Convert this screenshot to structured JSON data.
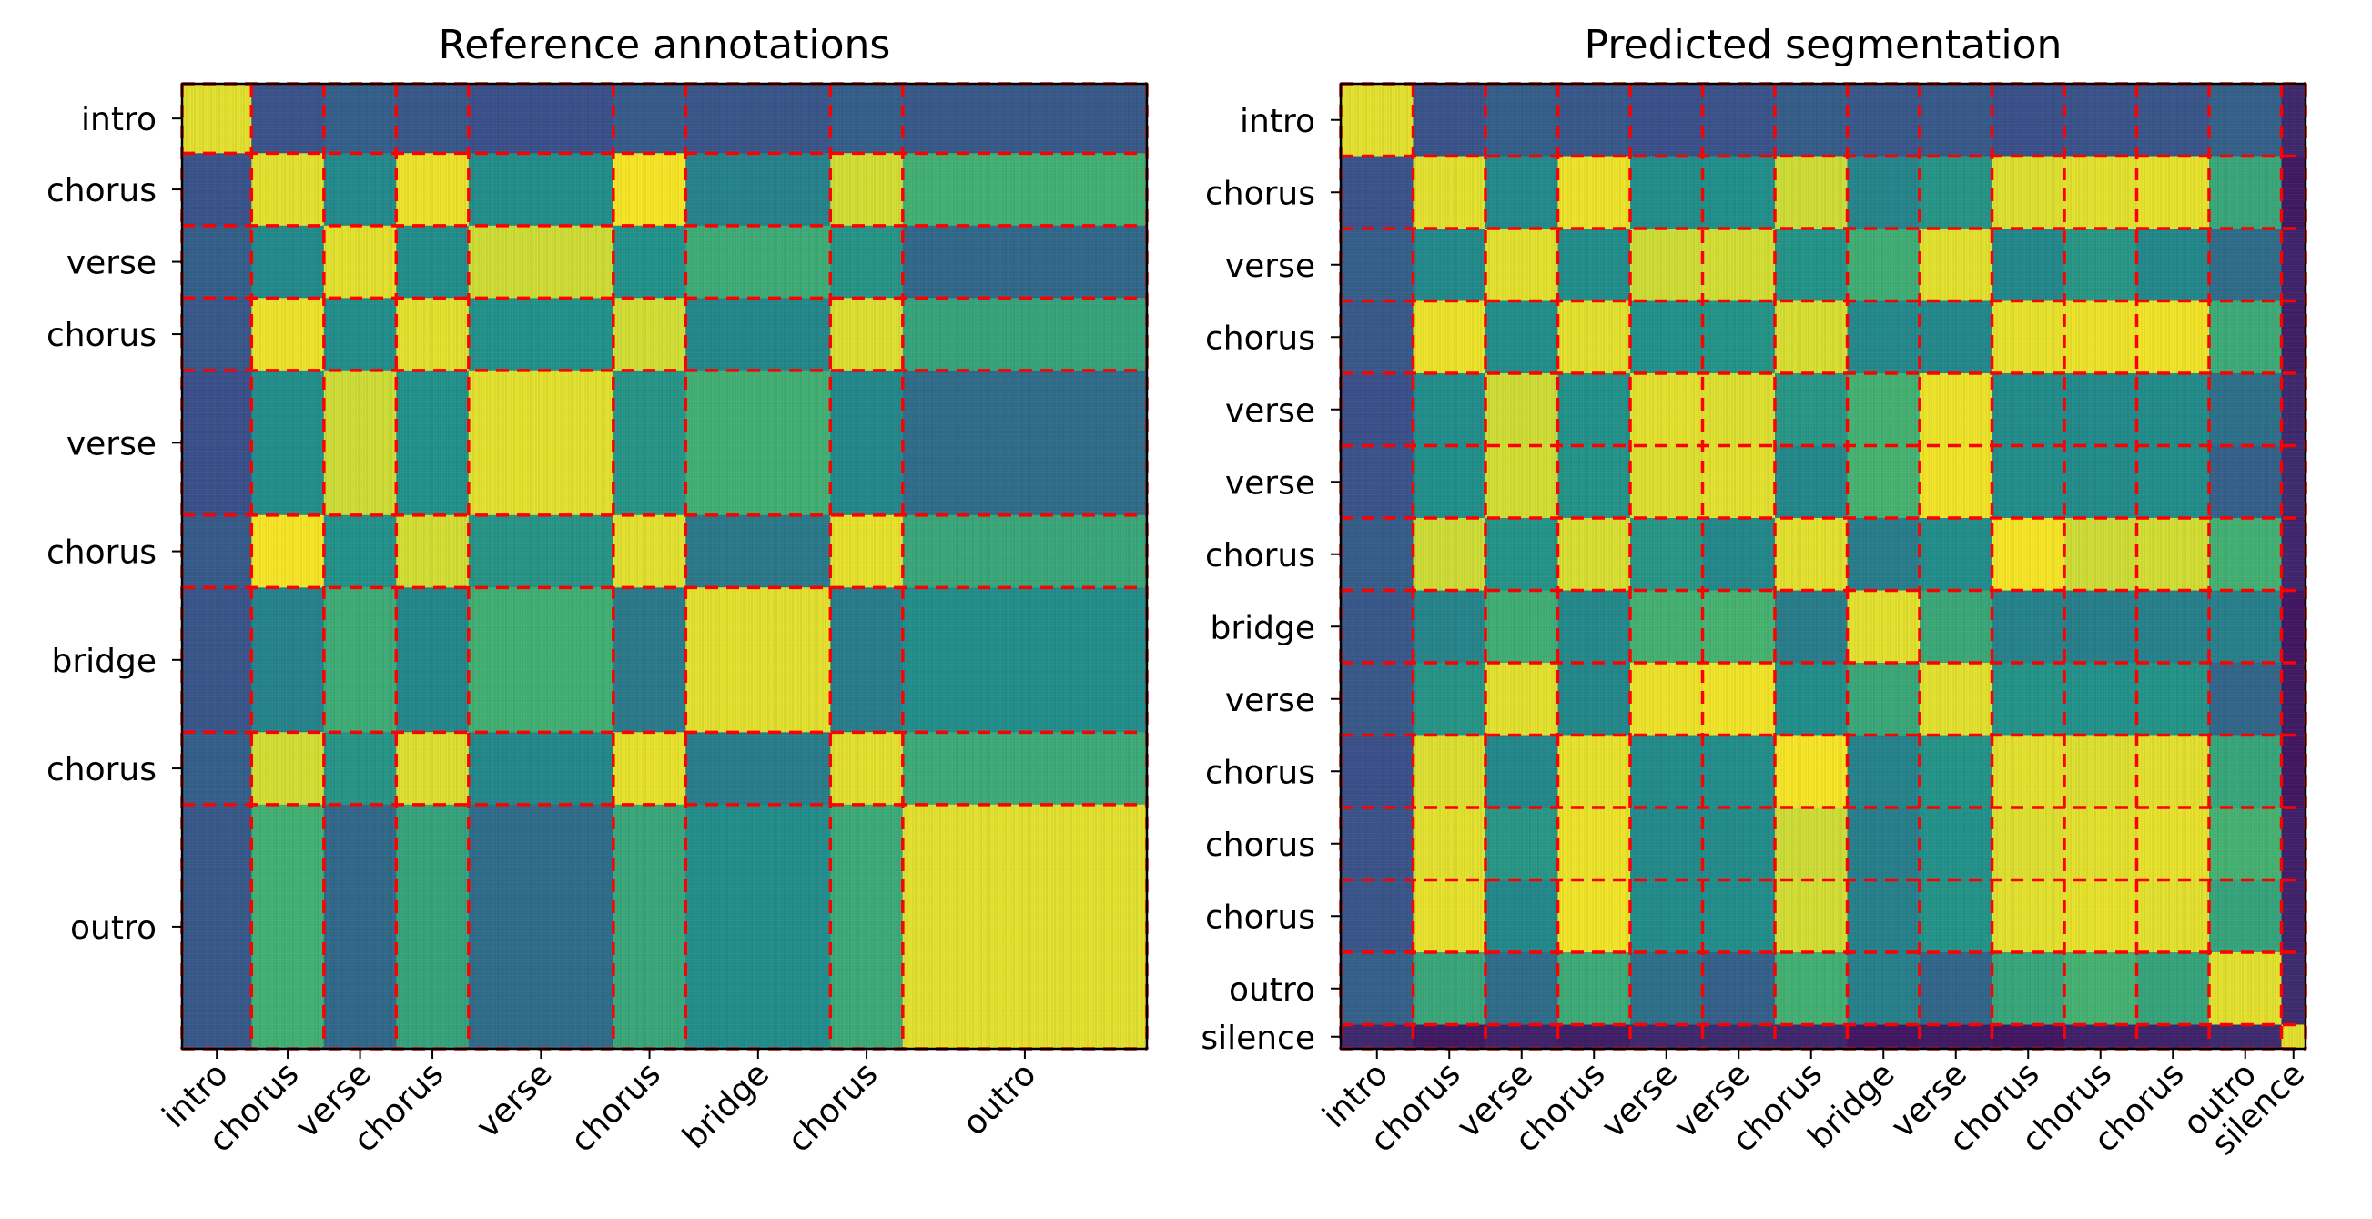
{
  "colors": {
    "boundary": "#ff0000",
    "cmap": [
      "#440154",
      "#3b528b",
      "#21918c",
      "#5ec962",
      "#fde725"
    ]
  },
  "chart_data": [
    {
      "type": "heatmap",
      "title": "Reference annotations",
      "colormap": "viridis",
      "segments": [
        {
          "label": "intro",
          "start": 0.0,
          "end": 0.072
        },
        {
          "label": "chorus",
          "start": 0.072,
          "end": 0.147
        },
        {
          "label": "verse",
          "start": 0.147,
          "end": 0.222
        },
        {
          "label": "chorus",
          "start": 0.222,
          "end": 0.297
        },
        {
          "label": "verse",
          "start": 0.297,
          "end": 0.447
        },
        {
          "label": "chorus",
          "start": 0.447,
          "end": 0.522
        },
        {
          "label": "bridge",
          "start": 0.522,
          "end": 0.672
        },
        {
          "label": "chorus",
          "start": 0.672,
          "end": 0.747
        },
        {
          "label": "outro",
          "start": 0.747,
          "end": 1.0
        }
      ]
    },
    {
      "type": "heatmap",
      "title": "Predicted segmentation",
      "colormap": "viridis",
      "segments": [
        {
          "label": "intro",
          "start": 0.0,
          "end": 0.075
        },
        {
          "label": "chorus",
          "start": 0.075,
          "end": 0.15
        },
        {
          "label": "verse",
          "start": 0.15,
          "end": 0.225
        },
        {
          "label": "chorus",
          "start": 0.225,
          "end": 0.3
        },
        {
          "label": "verse",
          "start": 0.3,
          "end": 0.375
        },
        {
          "label": "verse",
          "start": 0.375,
          "end": 0.45
        },
        {
          "label": "chorus",
          "start": 0.45,
          "end": 0.525
        },
        {
          "label": "bridge",
          "start": 0.525,
          "end": 0.6
        },
        {
          "label": "verse",
          "start": 0.6,
          "end": 0.675
        },
        {
          "label": "chorus",
          "start": 0.675,
          "end": 0.75
        },
        {
          "label": "chorus",
          "start": 0.75,
          "end": 0.825
        },
        {
          "label": "chorus",
          "start": 0.825,
          "end": 0.9
        },
        {
          "label": "outro",
          "start": 0.9,
          "end": 0.975
        },
        {
          "label": "silence",
          "start": 0.975,
          "end": 1.0
        }
      ]
    }
  ]
}
